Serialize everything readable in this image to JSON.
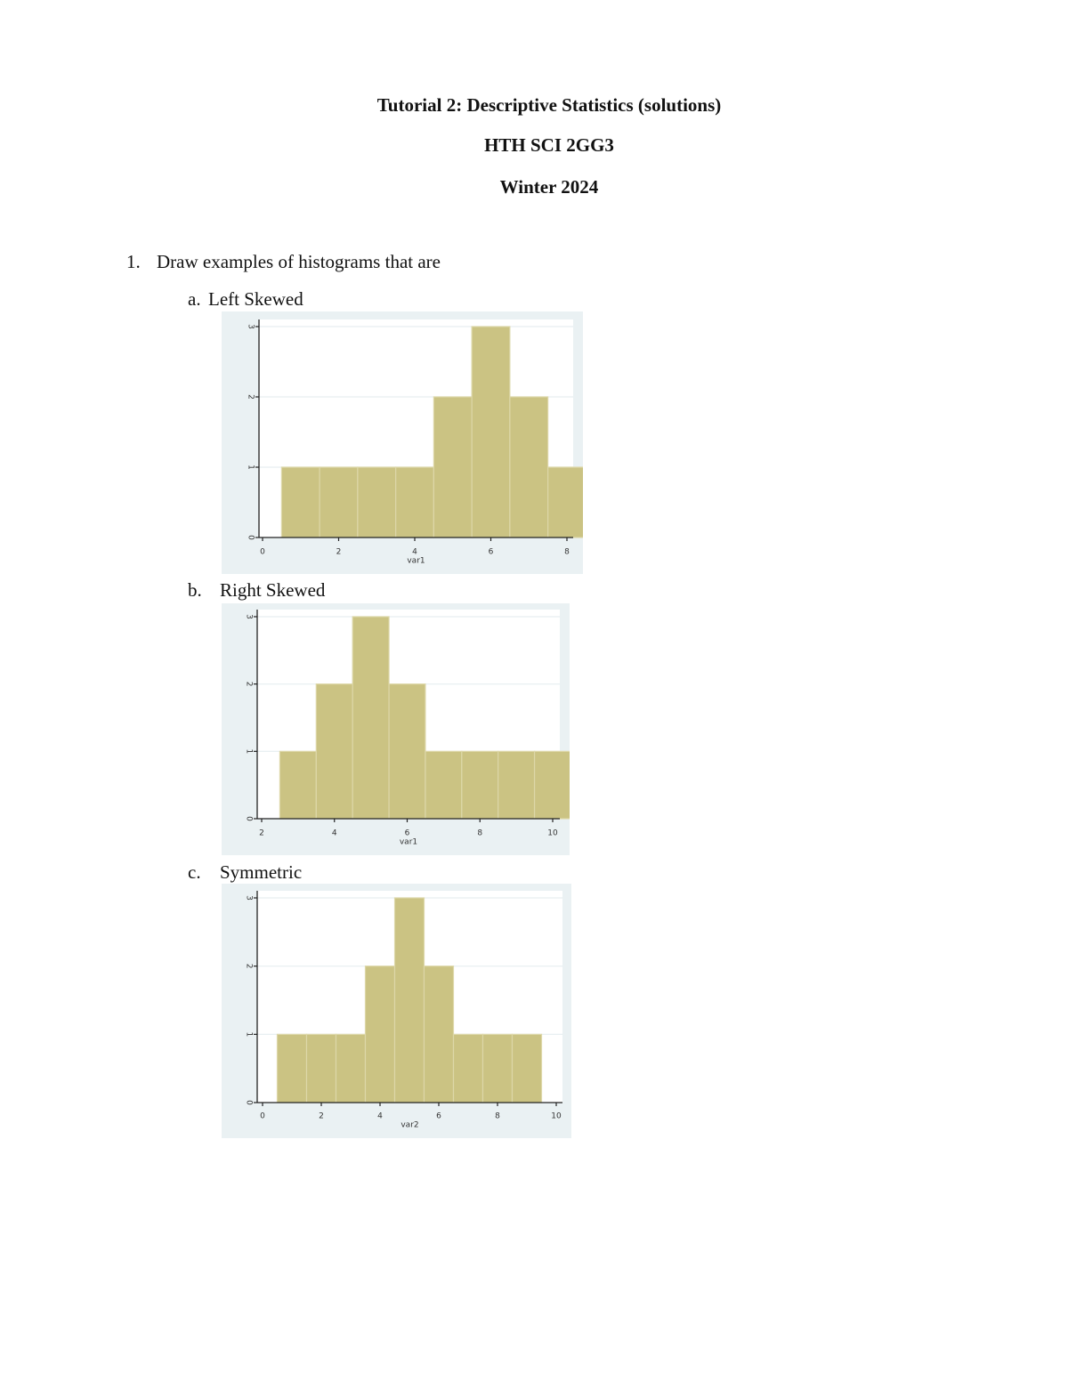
{
  "document": {
    "title": "Tutorial 2: Descriptive Statistics (solutions)",
    "course": "HTH SCI 2GG3",
    "term": "Winter 2024",
    "question": {
      "number": "1.",
      "text": "Draw examples of histograms that are",
      "parts": [
        {
          "label": "a.",
          "text": "Left Skewed"
        },
        {
          "label": "b.",
          "text": "Right Skewed"
        },
        {
          "label": "c.",
          "text": "Symmetric"
        }
      ]
    }
  },
  "colors": {
    "bar_fill": "#cbc383",
    "bar_edge": "#ddd7a8",
    "panel_bg": "#eaf1f3",
    "plot_bg": "#ffffff",
    "grid": "#e6eef0",
    "axis": "#222222"
  },
  "chart_data": [
    {
      "type": "bar",
      "title": "Left Skewed",
      "xlabel": "var1",
      "ylabel": "",
      "x": [
        1,
        2,
        3,
        4,
        5,
        6,
        7,
        8
      ],
      "values": [
        1,
        1,
        1,
        1,
        2,
        3,
        2,
        1
      ],
      "bin_width": 1,
      "xlim": [
        -0.2,
        8.6
      ],
      "ylim": [
        0,
        3
      ],
      "xticks": [
        0,
        2,
        4,
        6,
        8
      ],
      "yticks": [
        0,
        1,
        2,
        3
      ],
      "grid": true
    },
    {
      "type": "bar",
      "title": "Right Skewed",
      "xlabel": "var1",
      "ylabel": "",
      "x": [
        3,
        4,
        5,
        6,
        7,
        8,
        9,
        10
      ],
      "values": [
        1,
        2,
        3,
        2,
        1,
        1,
        1,
        1
      ],
      "bin_width": 1,
      "xlim": [
        1.8,
        10.6
      ],
      "ylim": [
        0,
        3
      ],
      "xticks": [
        2,
        4,
        6,
        8,
        10
      ],
      "yticks": [
        0,
        1,
        2,
        3
      ],
      "grid": true
    },
    {
      "type": "bar",
      "title": "Symmetric",
      "xlabel": "var2",
      "ylabel": "",
      "x": [
        1,
        2,
        3,
        4,
        5,
        6,
        7,
        8,
        9
      ],
      "values": [
        1,
        1,
        1,
        2,
        3,
        2,
        1,
        1,
        1
      ],
      "bin_width": 1,
      "xlim": [
        -0.2,
        10.2
      ],
      "ylim": [
        0,
        3
      ],
      "xticks": [
        0,
        2,
        4,
        6,
        8,
        10
      ],
      "yticks": [
        0,
        1,
        2,
        3
      ],
      "grid": true
    }
  ]
}
